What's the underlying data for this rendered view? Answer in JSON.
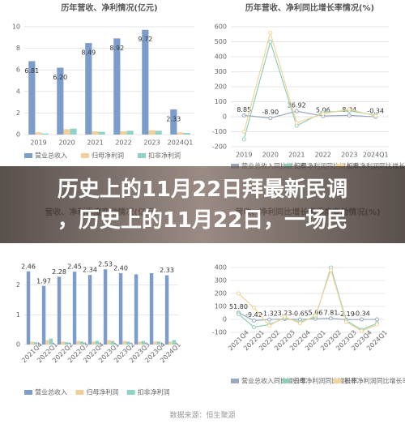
{
  "chart_data": [
    {
      "type": "bar",
      "title": "历年营收、净利情况(亿元)",
      "categories": [
        "2019",
        "2020",
        "2021",
        "2022",
        "2023",
        "2024Q1"
      ],
      "ylim": [
        0,
        10
      ],
      "yticks": [
        0,
        2,
        4,
        6,
        8,
        10
      ],
      "grid": true,
      "series": [
        {
          "name": "营业总收入",
          "color": "#7c9ccb",
          "values": [
            6.81,
            6.2,
            8.49,
            8.92,
            9.72,
            2.33
          ],
          "value_labels": [
            "6.81",
            "6.20",
            "8.49",
            "8.92",
            "9.72",
            "2.33"
          ]
        },
        {
          "name": "归母净利润",
          "color": "#f2cf9a",
          "values": [
            0.2,
            0.5,
            0.3,
            0.3,
            0.4,
            0.2
          ]
        },
        {
          "name": "扣非净利润",
          "color": "#8fd3c8",
          "values": [
            0.1,
            0.55,
            0.25,
            0.35,
            0.35,
            0.15
          ]
        }
      ]
    },
    {
      "type": "line",
      "title": "历年营收、净利同比增长率情况(%)",
      "categories": [
        "2019",
        "2020",
        "2021",
        "2022",
        "2023",
        "2024Q1"
      ],
      "ylim": [
        -200,
        600
      ],
      "yticks": [
        -200,
        -100,
        0,
        100,
        200,
        300,
        400,
        500,
        600
      ],
      "grid": true,
      "series": [
        {
          "name": "营业总收入同比增长率",
          "color": "#9aa9bf",
          "values": [
            8.85,
            -8.9,
            36.92,
            5.06,
            8.94,
            -0.34
          ],
          "value_labels": [
            "8.85",
            "-8.90",
            "36.92",
            "5.06",
            "8.94",
            "-0.34"
          ]
        },
        {
          "name": "归母净利润同比增长率",
          "color": "#8fcfb5",
          "values": [
            -150,
            500,
            -60,
            30,
            40,
            10
          ]
        },
        {
          "name": "扣非净利润同比增长率",
          "color": "#f2d59a",
          "values": [
            -100,
            560,
            -40,
            20,
            50,
            5
          ]
        }
      ]
    },
    {
      "type": "bar",
      "title": "营收、净利季度变动情况(亿元)",
      "categories": [
        "2021Q4",
        "2022Q1",
        "2022Q2",
        "2022Q3",
        "2022Q4",
        "2023Q1",
        "2023Q2",
        "2023Q3",
        "2023Q4",
        "2024Q1"
      ],
      "ylim": [
        0,
        3
      ],
      "yticks": [
        0,
        1,
        2
      ],
      "grid": true,
      "series": [
        {
          "name": "营业总收入",
          "color": "#7c9ccb",
          "values": [
            2.46,
            1.97,
            2.28,
            2.45,
            2.34,
            2.53,
            2.4,
            2.36,
            2.4,
            2.33
          ],
          "value_labels": [
            "2.46",
            "1.97",
            "2.28",
            "2.45",
            "2.34",
            "2.53",
            "2.40",
            null,
            null,
            "2.33"
          ]
        },
        {
          "name": "归母净利润",
          "color": "#f2cf9a",
          "values": [
            0.1,
            0.15,
            0.1,
            0.12,
            0.1,
            0.15,
            0.12,
            0.1,
            0.1,
            0.1
          ]
        },
        {
          "name": "扣非净利润",
          "color": "#8fd3c8",
          "values": [
            0.08,
            0.2,
            0.08,
            0.1,
            0.12,
            0.12,
            0.1,
            0.12,
            0.1,
            0.15
          ]
        }
      ]
    },
    {
      "type": "line",
      "title": "营收、净利同比增长率季度变动情况(%)",
      "categories": [
        "2021Q4",
        "2022Q1",
        "2022Q2",
        "2022Q3",
        "2022Q4",
        "2023Q1",
        "2023Q2",
        "2023Q3",
        "2023Q4",
        "2024Q1"
      ],
      "ylim": [
        -100,
        400
      ],
      "yticks": [
        -100,
        0,
        100,
        200,
        300,
        400
      ],
      "grid": true,
      "series": [
        {
          "name": "营业总收入同比增长率",
          "color": "#9aa9bf",
          "values": [
            51.8,
            -9.42,
            -1.32,
            3.23,
            -0.65,
            5.06,
            7.81,
            -2.19,
            -0.34,
            -0.34
          ],
          "value_labels": [
            "51.80",
            "-9.42",
            "-1.32",
            "3.23",
            "-0.65",
            "5.06",
            "7.81",
            "-2.19",
            "-0.34",
            null
          ]
        },
        {
          "name": "归母净利润同比增长率",
          "color": "#8fcfb5",
          "values": [
            40,
            -60,
            -40,
            10,
            -20,
            20,
            400,
            -10,
            -80,
            -30
          ]
        },
        {
          "name": "扣非净利润同比增长率",
          "color": "#f2d59a",
          "values": [
            200,
            90,
            -50,
            20,
            -30,
            30,
            380,
            -20,
            -90,
            -40
          ]
        }
      ]
    }
  ],
  "banner": [
    "历史上的11月22日拜最新民调",
    "，历史上的11月22日，一场民"
  ],
  "source": "数据来源：恒生聚源"
}
